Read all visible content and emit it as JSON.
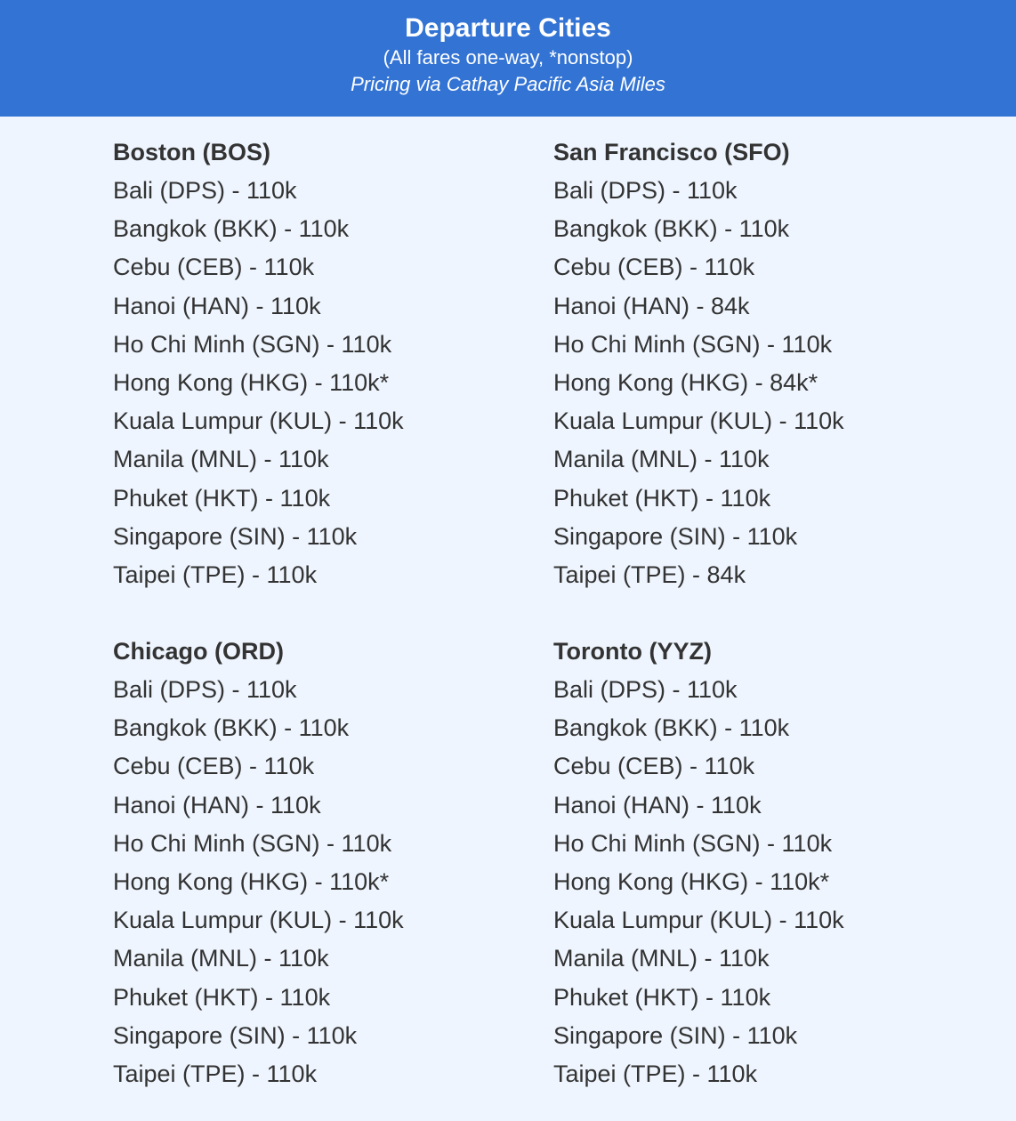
{
  "header": {
    "title": "Departure Cities",
    "subtitle": "(All fares one-way, *nonstop)",
    "note": "Pricing via Cathay Pacific Asia Miles",
    "background": "#3273d4"
  },
  "cities": [
    {
      "name": "Boston (BOS)",
      "fares": [
        "Bali (DPS) - 110k",
        "Bangkok (BKK) - 110k",
        "Cebu (CEB) - 110k",
        "Hanoi (HAN) - 110k",
        "Ho Chi Minh (SGN) - 110k",
        "Hong Kong (HKG) - 110k*",
        "Kuala Lumpur (KUL) - 110k",
        "Manila (MNL) - 110k",
        "Phuket (HKT) - 110k",
        "Singapore (SIN) - 110k",
        "Taipei (TPE) - 110k"
      ]
    },
    {
      "name": "San Francisco (SFO)",
      "fares": [
        "Bali (DPS) - 110k",
        "Bangkok (BKK) - 110k",
        "Cebu (CEB) - 110k",
        "Hanoi (HAN) - 84k",
        "Ho Chi Minh (SGN) - 110k",
        "Hong Kong (HKG) - 84k*",
        "Kuala Lumpur (KUL) - 110k",
        "Manila (MNL) - 110k",
        "Phuket (HKT) - 110k",
        "Singapore (SIN) - 110k",
        "Taipei (TPE) - 84k"
      ]
    },
    {
      "name": "Chicago (ORD)",
      "fares": [
        "Bali (DPS) - 110k",
        "Bangkok (BKK) - 110k",
        "Cebu (CEB) - 110k",
        "Hanoi (HAN) - 110k",
        "Ho Chi Minh (SGN) - 110k",
        "Hong Kong (HKG) - 110k*",
        "Kuala Lumpur (KUL) - 110k",
        "Manila (MNL) - 110k",
        "Phuket (HKT) - 110k",
        "Singapore (SIN) - 110k",
        "Taipei (TPE) - 110k"
      ]
    },
    {
      "name": "Toronto (YYZ)",
      "fares": [
        "Bali (DPS) - 110k",
        "Bangkok (BKK) - 110k",
        "Cebu (CEB) - 110k",
        "Hanoi (HAN) - 110k",
        "Ho Chi Minh (SGN) - 110k",
        "Hong Kong (HKG) - 110k*",
        "Kuala Lumpur (KUL) - 110k",
        "Manila (MNL) - 110k",
        "Phuket (HKT) - 110k",
        "Singapore (SIN) - 110k",
        "Taipei (TPE) - 110k"
      ]
    }
  ]
}
